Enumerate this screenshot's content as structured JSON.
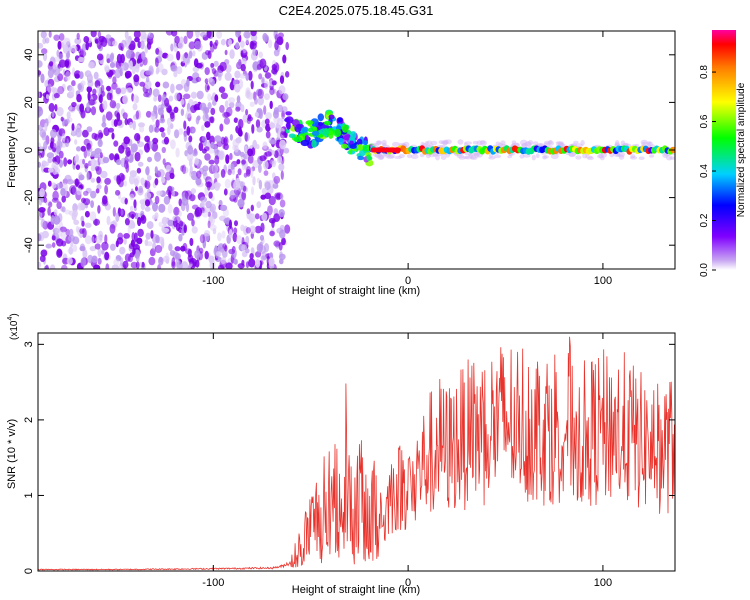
{
  "title": "C2E4.2025.075.18.45.G31",
  "colors": {
    "snr_line": "#e8322b",
    "scatter_purple": "#7a00e6",
    "axis": "#000000"
  },
  "chart_data": [
    {
      "type": "heatmap",
      "title": "C2E4.2025.075.18.45.G31",
      "xlabel": "Height of straight line (km)",
      "ylabel": "Frequency (Hz)",
      "xlim": [
        -190,
        137
      ],
      "ylim": [
        -50,
        50
      ],
      "xticks": [
        -100,
        0,
        100
      ],
      "xtick_labels": [
        "-100",
        "0",
        "100"
      ],
      "yticks": [
        -40,
        -20,
        0,
        20,
        40
      ],
      "ytick_labels": [
        "-40",
        "-20",
        "0",
        "20",
        "40"
      ],
      "colorbar": {
        "label": "Normalized spectral amplitude",
        "range": [
          0,
          0.97
        ],
        "ticks": [
          0,
          0.2,
          0.4,
          0.6,
          0.8
        ],
        "tick_labels": [
          "0.0",
          "0.2",
          "0.4",
          "0.6",
          "0.8"
        ],
        "colormap": "rainbow"
      },
      "regions": [
        {
          "name": "noise",
          "x": [
            -190,
            -62
          ],
          "freq": [
            -50,
            50
          ],
          "amplitude": [
            0.02,
            0.2
          ]
        },
        {
          "name": "transition",
          "x": [
            -62,
            -18
          ],
          "freq": [
            -8,
            22
          ],
          "amplitude": [
            0.1,
            0.65
          ]
        },
        {
          "name": "signal",
          "x": [
            -18,
            137
          ],
          "freq": [
            -2,
            2
          ],
          "amplitude": [
            0.2,
            0.95
          ],
          "center_freq": 0
        }
      ],
      "grid": false
    },
    {
      "type": "line",
      "xlabel": "Height of straight line (km)",
      "ylabel": "SNR (10 * v/v)",
      "y_multiplier_label": "(x10",
      "y_multiplier_exp": "4",
      "y_multiplier_close": ")",
      "xlim": [
        -190,
        137
      ],
      "ylim": [
        0,
        3.15
      ],
      "xticks": [
        -100,
        0,
        100
      ],
      "xtick_labels": [
        "-100",
        "0",
        "100"
      ],
      "yticks": [
        0,
        1,
        2,
        3
      ],
      "ytick_labels": [
        "0",
        "1",
        "2",
        "3"
      ],
      "series": [
        {
          "color": "#e8322b",
          "x": [
            -190,
            -150,
            -100,
            -70,
            -65,
            -60,
            -55,
            -50,
            -45,
            -40,
            -35,
            -32,
            -30,
            -28,
            -25,
            -20,
            -15,
            -12,
            -10,
            -5,
            0,
            5,
            10,
            15,
            20,
            30,
            40,
            50,
            60,
            70,
            80,
            90,
            100,
            110,
            120,
            130,
            137
          ],
          "y": [
            0.02,
            0.02,
            0.03,
            0.04,
            0.06,
            0.12,
            0.35,
            0.6,
            0.8,
            0.9,
            1.1,
            1.6,
            0.9,
            0.8,
            1.0,
            0.7,
            0.9,
            0.6,
            1.0,
            1.1,
            1.2,
            1.3,
            1.5,
            1.7,
            1.6,
            1.8,
            1.9,
            2.0,
            2.0,
            1.9,
            2.0,
            1.8,
            1.9,
            1.9,
            1.7,
            1.6,
            1.7
          ],
          "peak": {
            "x": 83,
            "y": 3.1
          }
        }
      ],
      "grid": false
    }
  ]
}
